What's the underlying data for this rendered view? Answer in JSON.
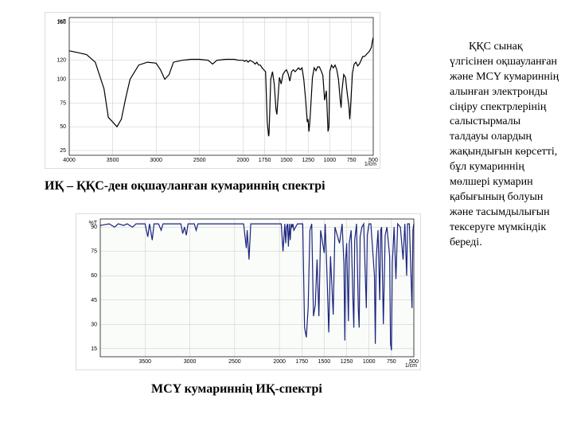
{
  "caption1": "ИҚ – ҚҚС-ден оқшауланған кумариннің спектрі",
  "caption2": "MCY кумариннің  ИҚ-спектрі",
  "body_text": "ҚҚС сынақ үлгісінен оқшауланған және MCY кумариннің алынған электронды сіңіру спектрлерінің салыстырмалы талдауы олардың жақындығын көрсетті, бұл кумариннің мөлшері кумарин қабығының болуын және тасымдылығын тексеруге мүмкіндік береді.",
  "chart1": {
    "background": "#ffffff",
    "grid_color": "#cfcfcf",
    "line_color": "#000000",
    "x_ticks": [
      4000,
      3500,
      3000,
      2500,
      2000,
      1750,
      1500,
      1250,
      1000,
      750,
      500
    ],
    "y_ticks": [
      25,
      50,
      75,
      100,
      120,
      160
    ],
    "y_label": "%T",
    "x_unit": "1/cm",
    "spectrum": [
      [
        4000,
        130
      ],
      [
        3900,
        128
      ],
      [
        3800,
        126
      ],
      [
        3700,
        118
      ],
      [
        3600,
        90
      ],
      [
        3550,
        60
      ],
      [
        3500,
        55
      ],
      [
        3450,
        50
      ],
      [
        3400,
        58
      ],
      [
        3350,
        80
      ],
      [
        3300,
        100
      ],
      [
        3200,
        115
      ],
      [
        3100,
        118
      ],
      [
        3000,
        117
      ],
      [
        2950,
        110
      ],
      [
        2900,
        100
      ],
      [
        2850,
        105
      ],
      [
        2800,
        118
      ],
      [
        2700,
        120
      ],
      [
        2600,
        121
      ],
      [
        2500,
        121
      ],
      [
        2400,
        120
      ],
      [
        2350,
        116
      ],
      [
        2300,
        120
      ],
      [
        2200,
        121
      ],
      [
        2100,
        121
      ],
      [
        2050,
        120
      ],
      [
        2000,
        120
      ],
      [
        1980,
        119
      ],
      [
        1960,
        120
      ],
      [
        1940,
        118
      ],
      [
        1920,
        120
      ],
      [
        1900,
        119
      ],
      [
        1880,
        118
      ],
      [
        1860,
        116
      ],
      [
        1840,
        118
      ],
      [
        1820,
        115
      ],
      [
        1800,
        115
      ],
      [
        1780,
        112
      ],
      [
        1760,
        110
      ],
      [
        1740,
        108
      ],
      [
        1720,
        55
      ],
      [
        1705,
        40
      ],
      [
        1700,
        42
      ],
      [
        1690,
        70
      ],
      [
        1680,
        100
      ],
      [
        1660,
        108
      ],
      [
        1640,
        95
      ],
      [
        1620,
        68
      ],
      [
        1610,
        63
      ],
      [
        1600,
        75
      ],
      [
        1580,
        102
      ],
      [
        1560,
        95
      ],
      [
        1540,
        105
      ],
      [
        1520,
        108
      ],
      [
        1500,
        110
      ],
      [
        1480,
        106
      ],
      [
        1460,
        98
      ],
      [
        1440,
        108
      ],
      [
        1420,
        110
      ],
      [
        1400,
        108
      ],
      [
        1380,
        110
      ],
      [
        1360,
        112
      ],
      [
        1340,
        110
      ],
      [
        1320,
        112
      ],
      [
        1300,
        100
      ],
      [
        1280,
        80
      ],
      [
        1260,
        55
      ],
      [
        1250,
        58
      ],
      [
        1240,
        45
      ],
      [
        1230,
        55
      ],
      [
        1220,
        70
      ],
      [
        1200,
        102
      ],
      [
        1180,
        112
      ],
      [
        1160,
        109
      ],
      [
        1140,
        113
      ],
      [
        1120,
        113
      ],
      [
        1100,
        109
      ],
      [
        1080,
        104
      ],
      [
        1060,
        78
      ],
      [
        1040,
        88
      ],
      [
        1020,
        45
      ],
      [
        1010,
        50
      ],
      [
        1000,
        108
      ],
      [
        980,
        115
      ],
      [
        960,
        112
      ],
      [
        940,
        115
      ],
      [
        920,
        110
      ],
      [
        900,
        100
      ],
      [
        880,
        78
      ],
      [
        870,
        70
      ],
      [
        860,
        88
      ],
      [
        840,
        105
      ],
      [
        820,
        102
      ],
      [
        800,
        85
      ],
      [
        780,
        72
      ],
      [
        770,
        58
      ],
      [
        760,
        72
      ],
      [
        740,
        106
      ],
      [
        720,
        116
      ],
      [
        700,
        118
      ],
      [
        680,
        114
      ],
      [
        660,
        116
      ],
      [
        640,
        120
      ],
      [
        620,
        124
      ],
      [
        600,
        124
      ],
      [
        580,
        126
      ],
      [
        560,
        128
      ],
      [
        540,
        130
      ],
      [
        520,
        134
      ],
      [
        510,
        140
      ],
      [
        500,
        144
      ]
    ]
  },
  "chart2": {
    "background": "#fafcf9",
    "grid_color": "#cfcfcf",
    "line_color": "#1a237e",
    "x_ticks": [
      3500,
      3000,
      2500,
      2000,
      1750,
      1500,
      1250,
      1000,
      750,
      500
    ],
    "y_ticks": [
      15,
      30,
      45,
      60,
      75,
      90
    ],
    "y_label": "%T",
    "x_unit": "1/cm",
    "spectrum": [
      [
        4000,
        91
      ],
      [
        3900,
        92
      ],
      [
        3840,
        90
      ],
      [
        3800,
        92
      ],
      [
        3740,
        91
      ],
      [
        3700,
        92
      ],
      [
        3640,
        90
      ],
      [
        3600,
        92
      ],
      [
        3500,
        92
      ],
      [
        3470,
        84
      ],
      [
        3450,
        92
      ],
      [
        3420,
        82
      ],
      [
        3400,
        92
      ],
      [
        3350,
        92
      ],
      [
        3320,
        88
      ],
      [
        3300,
        92
      ],
      [
        3100,
        92
      ],
      [
        3080,
        86
      ],
      [
        3060,
        90
      ],
      [
        3040,
        85
      ],
      [
        3020,
        92
      ],
      [
        2950,
        92
      ],
      [
        2930,
        88
      ],
      [
        2910,
        92
      ],
      [
        2800,
        92
      ],
      [
        2600,
        92
      ],
      [
        2400,
        92
      ],
      [
        2370,
        77
      ],
      [
        2360,
        88
      ],
      [
        2340,
        70
      ],
      [
        2320,
        92
      ],
      [
        2200,
        92
      ],
      [
        2000,
        92
      ],
      [
        1980,
        92
      ],
      [
        1960,
        75
      ],
      [
        1940,
        92
      ],
      [
        1930,
        80
      ],
      [
        1920,
        90
      ],
      [
        1910,
        92
      ],
      [
        1900,
        78
      ],
      [
        1890,
        92
      ],
      [
        1880,
        82
      ],
      [
        1870,
        92
      ],
      [
        1860,
        90
      ],
      [
        1850,
        92
      ],
      [
        1840,
        88
      ],
      [
        1800,
        92
      ],
      [
        1760,
        92
      ],
      [
        1740,
        92
      ],
      [
        1720,
        28
      ],
      [
        1700,
        22
      ],
      [
        1680,
        40
      ],
      [
        1660,
        88
      ],
      [
        1640,
        92
      ],
      [
        1620,
        35
      ],
      [
        1600,
        42
      ],
      [
        1580,
        70
      ],
      [
        1560,
        35
      ],
      [
        1540,
        88
      ],
      [
        1500,
        74
      ],
      [
        1490,
        92
      ],
      [
        1470,
        62
      ],
      [
        1450,
        25
      ],
      [
        1430,
        72
      ],
      [
        1400,
        36
      ],
      [
        1380,
        90
      ],
      [
        1330,
        80
      ],
      [
        1300,
        92
      ],
      [
        1280,
        67
      ],
      [
        1270,
        20
      ],
      [
        1260,
        70
      ],
      [
        1250,
        80
      ],
      [
        1230,
        32
      ],
      [
        1220,
        80
      ],
      [
        1200,
        88
      ],
      [
        1180,
        45
      ],
      [
        1170,
        28
      ],
      [
        1160,
        82
      ],
      [
        1140,
        92
      ],
      [
        1120,
        40
      ],
      [
        1110,
        28
      ],
      [
        1100,
        84
      ],
      [
        1080,
        90
      ],
      [
        1060,
        92
      ],
      [
        1030,
        40
      ],
      [
        1020,
        85
      ],
      [
        1000,
        92
      ],
      [
        980,
        92
      ],
      [
        940,
        60
      ],
      [
        930,
        18
      ],
      [
        920,
        70
      ],
      [
        900,
        88
      ],
      [
        880,
        45
      ],
      [
        870,
        88
      ],
      [
        860,
        90
      ],
      [
        840,
        30
      ],
      [
        820,
        85
      ],
      [
        800,
        90
      ],
      [
        770,
        72
      ],
      [
        760,
        18
      ],
      [
        750,
        14
      ],
      [
        740,
        68
      ],
      [
        720,
        90
      ],
      [
        700,
        58
      ],
      [
        680,
        92
      ],
      [
        650,
        90
      ],
      [
        620,
        70
      ],
      [
        600,
        92
      ],
      [
        580,
        60
      ],
      [
        570,
        92
      ],
      [
        550,
        92
      ],
      [
        530,
        58
      ],
      [
        520,
        40
      ],
      [
        510,
        88
      ],
      [
        500,
        92
      ]
    ]
  }
}
